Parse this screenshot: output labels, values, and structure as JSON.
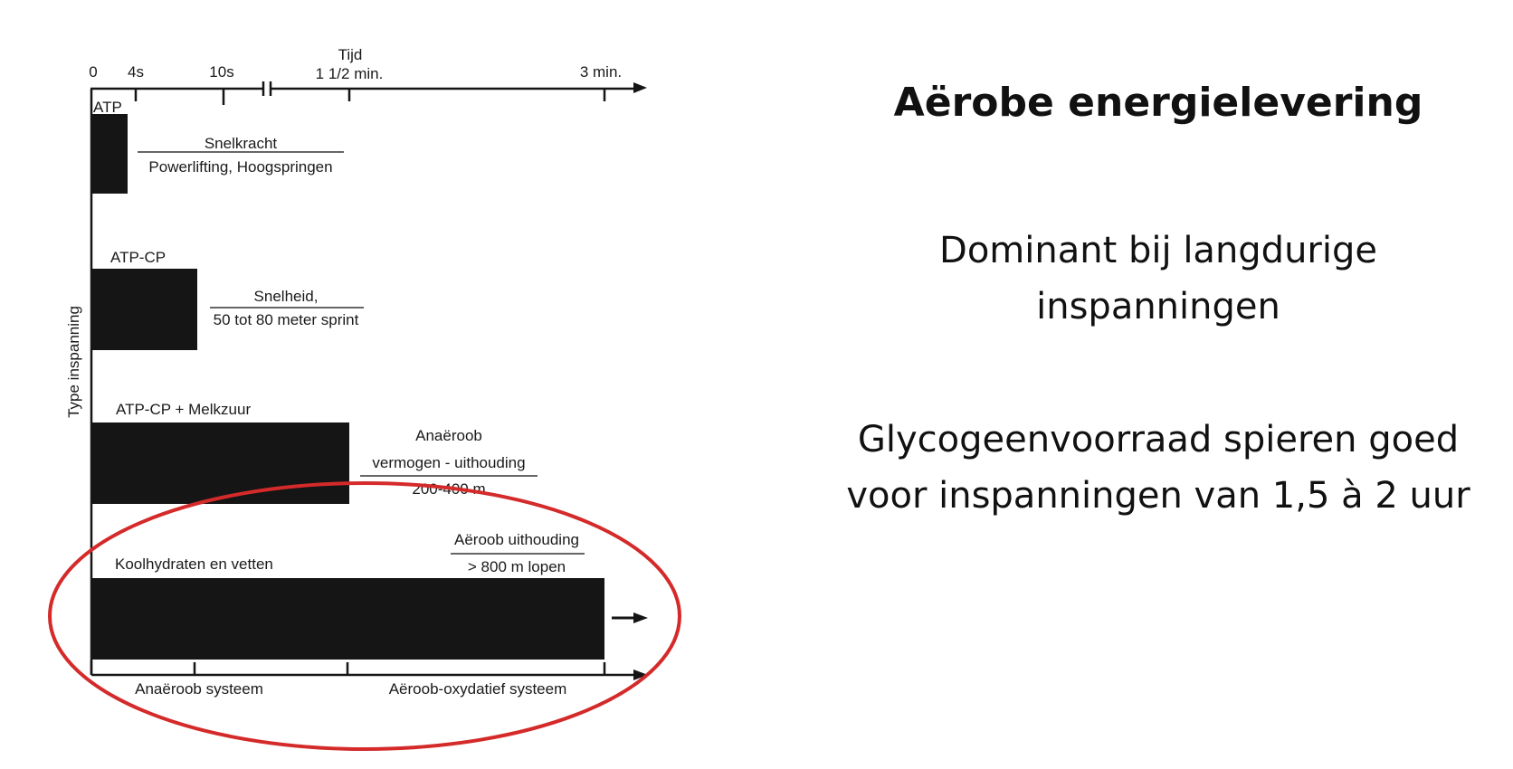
{
  "diagram": {
    "time_axis": {
      "title": "Tijd",
      "ticks": [
        {
          "label": "0"
        },
        {
          "label": "4s"
        },
        {
          "label": "10s"
        },
        {
          "label": "1 1/2 min."
        },
        {
          "label": "3 min."
        }
      ]
    },
    "y_axis_label": "Type inspanning",
    "energy_systems": [
      {
        "name": "ATP",
        "activity_top": "Snelkracht",
        "activity_bottom": "Powerlifting, Hoogspringen",
        "duration_end": "4s"
      },
      {
        "name": "ATP-CP",
        "activity_top": "Snelheid,",
        "activity_bottom": "50 tot 80 meter sprint",
        "duration_end": "10s"
      },
      {
        "name": "ATP-CP + Melkzuur",
        "activity_top": "Anaëroob",
        "activity_middle": "vermogen - uithouding",
        "activity_bottom": "200-400 m",
        "duration_end": "1 1/2 min."
      },
      {
        "name": "Koolhydraten en vetten",
        "activity_top": "Aëroob uithouding",
        "activity_bottom": "> 800 m lopen",
        "duration_end": "3 min.",
        "continues": true
      }
    ],
    "bottom_axis": {
      "left_label": "Anaëroob systeem",
      "right_label": "Aëroob-oxydatief systeem"
    },
    "highlight_color": "#d42a2a",
    "bar_color": "#151515"
  },
  "text_panel": {
    "title": "Aërobe energielevering",
    "para1_line1": "Dominant bij langdurige",
    "para1_line2": "inspanningen",
    "para2_line1": "Glycogeenvoorraad spieren goed",
    "para2_line2": "voor inspanningen van 1,5 à 2 uur"
  }
}
